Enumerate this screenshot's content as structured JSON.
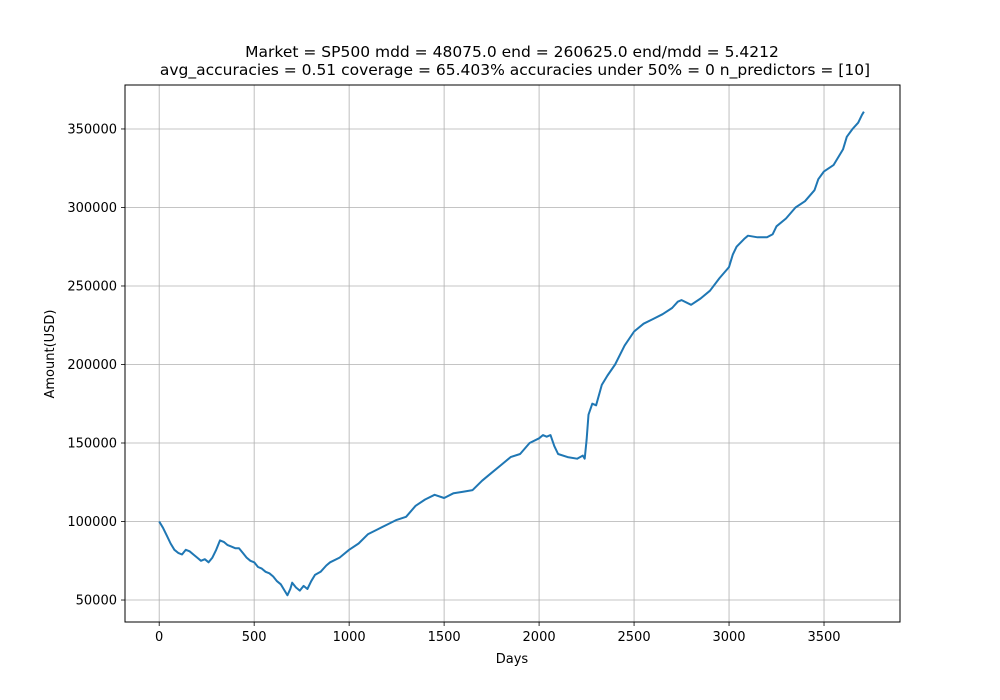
{
  "chart_data": {
    "type": "line",
    "title": [
      "Market = SP500 mdd = 48075.0 end = 260625.0 end/mdd = 5.4212",
      "avg_accuracies = 0.51 coverage = 65.403%  accuracies under 50% = 0 n_predictors = [10]"
    ],
    "xlabel": "Days",
    "ylabel": "Amount(USD)",
    "xlim": [
      -180,
      3900
    ],
    "ylim": [
      36000,
      378000
    ],
    "xticks": [
      0,
      500,
      1000,
      1500,
      2000,
      2500,
      3000,
      3500
    ],
    "yticks": [
      50000,
      100000,
      150000,
      200000,
      250000,
      300000,
      350000
    ],
    "grid": true,
    "line_color": "#1f77b4",
    "series": [
      {
        "x": [
          0,
          20,
          40,
          60,
          80,
          100,
          120,
          140,
          160,
          180,
          200,
          220,
          240,
          260,
          280,
          300,
          320,
          340,
          360,
          380,
          400,
          420,
          440,
          460,
          480,
          500,
          520,
          540,
          560,
          580,
          600,
          620,
          640,
          660,
          675,
          690,
          700,
          720,
          740,
          760,
          780,
          800,
          820,
          850,
          880,
          900,
          950,
          1000,
          1050,
          1100,
          1150,
          1200,
          1250,
          1300,
          1350,
          1400,
          1450,
          1500,
          1550,
          1600,
          1650,
          1700,
          1750,
          1800,
          1850,
          1900,
          1950,
          2000,
          2020,
          2040,
          2060,
          2080,
          2100,
          2150,
          2200,
          2230,
          2240,
          2250,
          2260,
          2280,
          2300,
          2330,
          2360,
          2400,
          2450,
          2500,
          2550,
          2600,
          2650,
          2700,
          2730,
          2750,
          2800,
          2850,
          2900,
          2950,
          3000,
          3020,
          3040,
          3080,
          3100,
          3150,
          3200,
          3230,
          3250,
          3300,
          3350,
          3400,
          3450,
          3470,
          3500,
          3550,
          3600,
          3620,
          3650,
          3680,
          3700,
          3710
        ],
        "y": [
          100000,
          96000,
          91000,
          86000,
          82000,
          80000,
          79000,
          82000,
          81000,
          79000,
          77000,
          75000,
          76000,
          74000,
          77000,
          82000,
          88000,
          87000,
          85000,
          84000,
          83000,
          83000,
          80000,
          77000,
          75000,
          74000,
          71000,
          70000,
          68000,
          67000,
          65000,
          62000,
          60000,
          56000,
          53000,
          57000,
          61000,
          58000,
          56000,
          59000,
          57000,
          62000,
          66000,
          68000,
          72000,
          74000,
          77000,
          82000,
          86000,
          92000,
          95000,
          98000,
          101000,
          103000,
          110000,
          114000,
          117000,
          115000,
          118000,
          119000,
          120000,
          126000,
          131000,
          136000,
          141000,
          143000,
          150000,
          153000,
          155000,
          154000,
          155000,
          148000,
          143000,
          141000,
          140000,
          142000,
          140000,
          152000,
          168000,
          175000,
          174000,
          187000,
          193000,
          200000,
          212000,
          221000,
          226000,
          229000,
          232000,
          236000,
          240000,
          241000,
          238000,
          242000,
          247000,
          255000,
          262000,
          270000,
          275000,
          280000,
          282000,
          281000,
          281000,
          283000,
          288000,
          293000,
          300000,
          304000,
          311000,
          318000,
          323000,
          327000,
          337000,
          345000,
          350000,
          354000,
          359000,
          361000
        ]
      }
    ]
  }
}
